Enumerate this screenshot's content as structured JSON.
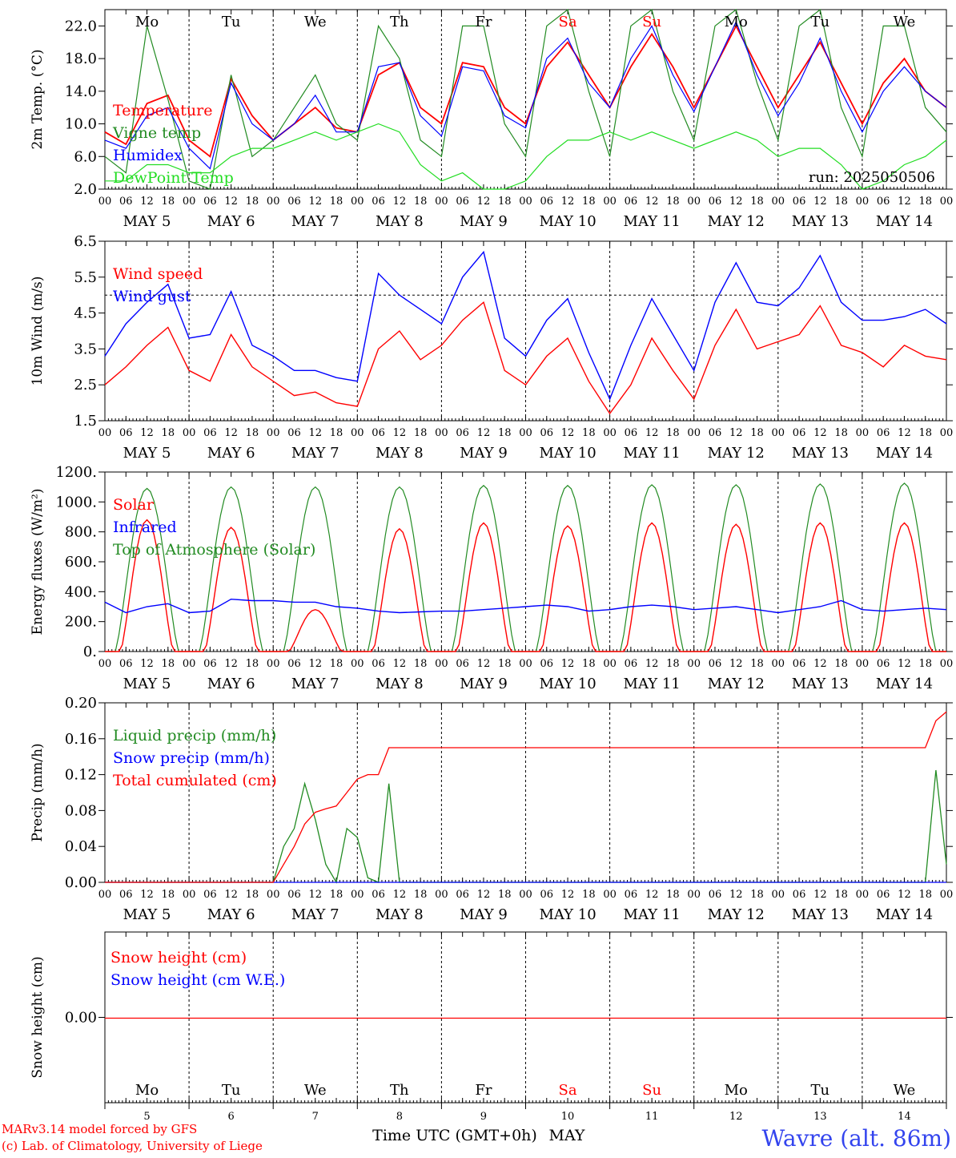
{
  "colors": {
    "red": "#ff0000",
    "green": "#228b22",
    "lime": "#22dd22",
    "blue": "#0000ff"
  },
  "days_short": [
    "Mo",
    "Tu",
    "We",
    "Th",
    "Fr",
    "Sa",
    "Su",
    "Mo",
    "Tu",
    "We"
  ],
  "weekend_flags": [
    false,
    false,
    false,
    false,
    false,
    true,
    true,
    false,
    false,
    false
  ],
  "day_labels": [
    "MAY  5",
    "MAY  6",
    "MAY  7",
    "MAY  8",
    "MAY  9",
    "MAY 10",
    "MAY 11",
    "MAY 12",
    "MAY 13",
    "MAY 14"
  ],
  "day_numbers": [
    "5",
    "6",
    "7",
    "8",
    "9",
    "10",
    "11",
    "12",
    "13",
    "14"
  ],
  "hour_labels": [
    "00",
    "06",
    "12",
    "18"
  ],
  "run_label": "run: 2025050506",
  "x_title": "Time UTC (GMT+0h)",
  "x_month": "MAY",
  "station": "Wavre (alt. 86m)",
  "credit_1": "MARv3.14 model forced by GFS",
  "credit_2": "(c) Lab. of Climatology, University of Liege",
  "chart_data": [
    {
      "type": "line",
      "ylabel": "2m Temp. (°C)",
      "ylim": [
        2,
        24
      ],
      "yticks": [
        "2.0",
        "6.0",
        "10.0",
        "14.0",
        "18.0",
        "22.0"
      ],
      "ytick_values": [
        2,
        6,
        10,
        14,
        18,
        22
      ],
      "x_hours": [
        0,
        6,
        12,
        18,
        24,
        30,
        36,
        42,
        48,
        54,
        60,
        66,
        72,
        78,
        84,
        90,
        96,
        102,
        108,
        114,
        120,
        126,
        132,
        138,
        144,
        150,
        156,
        162,
        168,
        174,
        180,
        186,
        192,
        198,
        204,
        210,
        216,
        222,
        228,
        234,
        240
      ],
      "series": [
        {
          "name": "Temperature",
          "color": "#ff0000",
          "values": [
            9,
            7.5,
            12.5,
            13.5,
            8,
            6,
            15.5,
            11,
            8,
            10,
            12,
            9.5,
            9,
            16,
            17.5,
            12,
            10,
            17.5,
            17,
            12,
            10,
            17,
            20,
            16,
            12,
            17,
            21,
            17,
            12,
            17,
            22,
            17,
            12,
            16,
            20,
            15,
            10,
            15,
            18,
            14,
            12
          ]
        },
        {
          "name": "Vigne temp",
          "color": "#228b22",
          "values": [
            6,
            4,
            22,
            13,
            3,
            2,
            16,
            6,
            8,
            12,
            16,
            10,
            8,
            22,
            18,
            8,
            6,
            22,
            22,
            10,
            6,
            22,
            24,
            14,
            6,
            22,
            24,
            14,
            8,
            22,
            24,
            15,
            8,
            22,
            24,
            12,
            6,
            22,
            22,
            12,
            9
          ]
        },
        {
          "name": "Humidex",
          "color": "#0000ff",
          "values": [
            8,
            7,
            11,
            12,
            7,
            4.5,
            15,
            10,
            8,
            10,
            13.5,
            9,
            9,
            17,
            17.5,
            11,
            8.5,
            17,
            16.5,
            11,
            9.5,
            18,
            20.5,
            15,
            12,
            18,
            22,
            16,
            11.5,
            17,
            22.5,
            16,
            11,
            15,
            20.5,
            14,
            9,
            14,
            17,
            14,
            12
          ]
        },
        {
          "name": "DewPoint Temp",
          "color": "#22dd22",
          "values": [
            3,
            3,
            5,
            5,
            4,
            4,
            6,
            7,
            7,
            8,
            9,
            8,
            9,
            10,
            9,
            5,
            3,
            4,
            2,
            2,
            3,
            6,
            8,
            8,
            9,
            8,
            9,
            8,
            7,
            8,
            9,
            8,
            6,
            7,
            7,
            5,
            2,
            3,
            5,
            6,
            8
          ]
        }
      ]
    },
    {
      "type": "line",
      "ylabel": "10m Wind (m/s)",
      "ylim": [
        1.5,
        6.5
      ],
      "yticks": [
        "1.5",
        "2.5",
        "3.5",
        "4.5",
        "5.5",
        "6.5"
      ],
      "ytick_values": [
        1.5,
        2.5,
        3.5,
        4.5,
        5.5,
        6.5
      ],
      "ref_line": 5,
      "x_hours": [
        0,
        6,
        12,
        18,
        24,
        30,
        36,
        42,
        48,
        54,
        60,
        66,
        72,
        78,
        84,
        90,
        96,
        102,
        108,
        114,
        120,
        126,
        132,
        138,
        144,
        150,
        156,
        162,
        168,
        174,
        180,
        186,
        192,
        198,
        204,
        210,
        216,
        222,
        228,
        234,
        240
      ],
      "series": [
        {
          "name": "Wind speed",
          "color": "#ff0000",
          "values": [
            2.5,
            3,
            3.6,
            4.1,
            2.9,
            2.6,
            3.9,
            3,
            2.6,
            2.2,
            2.3,
            2.0,
            1.9,
            3.5,
            4.0,
            3.2,
            3.6,
            4.3,
            4.8,
            2.9,
            2.5,
            3.3,
            3.8,
            2.6,
            1.7,
            2.5,
            3.8,
            2.9,
            2.1,
            3.6,
            4.6,
            3.5,
            3.7,
            3.9,
            4.7,
            3.6,
            3.4,
            3.0,
            3.6,
            3.3,
            3.2
          ]
        },
        {
          "name": "Wind gust",
          "color": "#0000ff",
          "values": [
            3.3,
            4.2,
            4.8,
            5.3,
            3.8,
            3.9,
            5.1,
            3.6,
            3.3,
            2.9,
            2.9,
            2.7,
            2.6,
            5.6,
            5.0,
            4.6,
            4.2,
            5.5,
            6.2,
            3.8,
            3.3,
            4.3,
            4.9,
            3.4,
            2.1,
            3.6,
            4.9,
            3.9,
            2.9,
            4.8,
            5.9,
            4.8,
            4.7,
            5.2,
            6.1,
            4.8,
            4.3,
            4.3,
            4.4,
            4.6,
            4.2
          ]
        }
      ]
    },
    {
      "type": "line",
      "ylabel": "Energy fluxes (W/m²)",
      "ylim": [
        0,
        1200
      ],
      "yticks": [
        "0.",
        "200.",
        "400.",
        "600.",
        "800.",
        "1000.",
        "1200."
      ],
      "ytick_values": [
        0,
        200,
        400,
        600,
        800,
        1000,
        1200
      ],
      "solar_peaks": [
        880,
        830,
        280,
        820,
        860,
        840,
        860,
        850,
        860,
        860
      ],
      "toa_peaks": [
        1090,
        1100,
        1100,
        1100,
        1110,
        1110,
        1115,
        1115,
        1120,
        1125
      ],
      "series": [
        {
          "name": "Solar",
          "color": "#ff0000"
        },
        {
          "name": "Infrared",
          "color": "#0000ff",
          "values": [
            330,
            260,
            300,
            320,
            260,
            270,
            350,
            340,
            340,
            330,
            330,
            300,
            290,
            270,
            260,
            265,
            270,
            270,
            280,
            290,
            300,
            310,
            300,
            270,
            280,
            300,
            310,
            300,
            280,
            290,
            300,
            280,
            260,
            280,
            300,
            340,
            280,
            270,
            280,
            290,
            280
          ]
        },
        {
          "name": "Top of Atmosphere (Solar)",
          "color": "#228b22"
        }
      ]
    },
    {
      "type": "line",
      "ylabel": "Precip (mm/h)",
      "ylim": [
        0,
        0.2
      ],
      "yticks": [
        "0.00",
        "0.04",
        "0.08",
        "0.12",
        "0.16",
        "0.20"
      ],
      "ytick_values": [
        0,
        0.04,
        0.08,
        0.12,
        0.16,
        0.2
      ],
      "x_hours": [
        0,
        6,
        12,
        18,
        24,
        30,
        36,
        42,
        48,
        51,
        54,
        57,
        60,
        63,
        66,
        69,
        72,
        75,
        78,
        81,
        84,
        87,
        90,
        96,
        120,
        150,
        180,
        210,
        234,
        237,
        240
      ],
      "series": [
        {
          "name": "Liquid precip (mm/h)",
          "color": "#228b22",
          "values": [
            0,
            0,
            0,
            0,
            0,
            0,
            0,
            0,
            0,
            0.04,
            0.06,
            0.11,
            0.07,
            0.02,
            0,
            0.06,
            0.05,
            0.005,
            0,
            0.11,
            0,
            0,
            0,
            0,
            0,
            0,
            0,
            0,
            0,
            0.125,
            0.02
          ]
        },
        {
          "name": "Snow precip (mm/h)",
          "color": "#0000ff",
          "values": [
            0,
            0,
            0,
            0,
            0,
            0,
            0,
            0,
            0,
            0,
            0,
            0,
            0,
            0,
            0,
            0,
            0,
            0,
            0,
            0,
            0,
            0,
            0,
            0,
            0,
            0,
            0,
            0,
            0,
            0,
            0
          ]
        },
        {
          "name": "Total cumulated (cm)",
          "color": "#ff0000",
          "values": [
            0,
            0,
            0,
            0,
            0,
            0,
            0,
            0,
            0,
            0.02,
            0.04,
            0.065,
            0.078,
            0.082,
            0.085,
            0.1,
            0.115,
            0.12,
            0.12,
            0.15,
            0.15,
            0.15,
            0.15,
            0.15,
            0.15,
            0.15,
            0.15,
            0.15,
            0.15,
            0.18,
            0.19
          ]
        }
      ]
    },
    {
      "type": "line",
      "ylabel": "Snow height (cm)",
      "yticks": [
        "0.00"
      ],
      "series": [
        {
          "name": "Snow height (cm)",
          "color": "#ff0000",
          "values": [
            0,
            0
          ]
        },
        {
          "name": "Snow height (cm W.E.)",
          "color": "#0000ff",
          "values": [
            0,
            0
          ]
        }
      ]
    }
  ]
}
